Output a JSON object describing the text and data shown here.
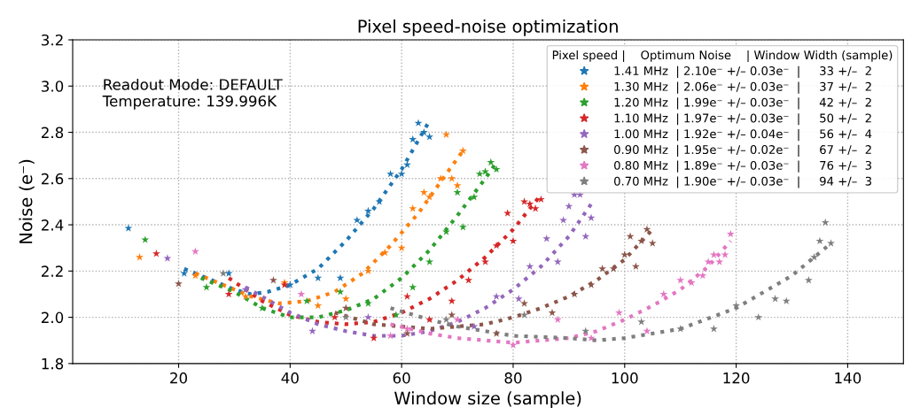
{
  "chart_data": {
    "type": "scatter",
    "title": "Pixel speed-noise optimization",
    "xlabel": "Window size (sample)",
    "ylabel": "Noise (e⁻)",
    "legend_title": "Pixel speed |    Optimum Noise    | Window Width (sample)",
    "annotations": [
      "Readout Mode: DEFAULT\nTemperature: 139.996K"
    ],
    "xlim": [
      1,
      150
    ],
    "xticks": [
      20,
      40,
      60,
      80,
      100,
      120,
      140
    ],
    "ylim": [
      1.8,
      3.2
    ],
    "yticks": [
      1.8,
      {
        "value": 2,
        "label": "2.0"
      },
      2.2,
      2.4,
      2.6,
      2.8,
      {
        "value": 3,
        "label": "3.0"
      },
      3.2
    ],
    "grid": true,
    "legend": "top right",
    "marker": "star",
    "series": [
      {
        "name": "1.41 MHz  | 2.10e⁻ +/– 0.03e⁻  |     33 +/–  2",
        "color": "#1f77b4",
        "x": [
          11,
          21,
          29,
          40,
          45,
          49,
          52,
          54,
          56,
          58,
          60,
          61,
          62,
          63,
          64,
          65
        ],
        "values": [
          2.385,
          2.19,
          2.19,
          2.14,
          2.17,
          2.17,
          2.42,
          2.46,
          2.5,
          2.62,
          2.62,
          2.66,
          2.77,
          2.84,
          2.8,
          2.78
        ]
      },
      {
        "name": "1.30 MHz  | 2.06e⁻ +/– 0.03e⁻  |     37 +/–  2",
        "color": "#ff7f0e",
        "x": [
          13,
          23,
          32,
          39,
          45,
          50,
          54,
          57,
          60,
          62,
          64,
          65,
          67,
          68,
          69,
          70,
          71
        ],
        "values": [
          2.26,
          2.18,
          2.09,
          2.15,
          2.05,
          2.08,
          2.2,
          2.28,
          2.3,
          2.47,
          2.54,
          2.52,
          2.6,
          2.79,
          2.6,
          2.57,
          2.72
        ]
      },
      {
        "name": "1.20 MHz  | 1.99e⁻ +/– 0.03e⁻  |     42 +/–  2",
        "color": "#2ca02c",
        "x": [
          14,
          25,
          35,
          43,
          49,
          54,
          59,
          62,
          65,
          68,
          70,
          71,
          73,
          74,
          75,
          76,
          77
        ],
        "values": [
          2.335,
          2.13,
          2.04,
          2.07,
          2.11,
          2.06,
          2.01,
          2.13,
          2.24,
          2.37,
          2.54,
          2.39,
          2.52,
          2.62,
          2.63,
          2.67,
          2.64
        ]
      },
      {
        "name": "1.10 MHz  | 1.97e⁻ +/– 0.03e⁻  |     50 +/–  2",
        "color": "#d62728",
        "x": [
          16,
          29,
          39,
          48,
          55,
          61,
          65,
          69,
          72,
          75,
          77,
          79,
          80,
          82,
          83,
          84,
          85
        ],
        "values": [
          2.275,
          2.1,
          2.14,
          2.0,
          1.91,
          2.09,
          1.99,
          2.07,
          2.16,
          2.24,
          2.31,
          2.45,
          2.33,
          2.5,
          2.49,
          2.47,
          2.51
        ]
      },
      {
        "name": "1.00 MHz  | 1.92e⁻ +/– 0.04e⁻  |     56 +/–  4",
        "color": "#9467bd",
        "x": [
          18,
          32,
          44,
          54,
          73,
          77,
          81,
          83,
          86,
          88,
          89,
          90,
          91,
          92,
          93,
          94
        ],
        "values": [
          2.255,
          2.12,
          1.94,
          2.0,
          1.96,
          2.09,
          2.08,
          2.22,
          2.34,
          2.24,
          2.42,
          2.48,
          2.53,
          2.53,
          2.35,
          2.43
        ]
      },
      {
        "name": "0.90 MHz  | 1.95e⁻ +/– 0.02e⁻  |     67 +/–  2",
        "color": "#8c564b",
        "x": [
          20,
          37,
          50,
          61,
          69,
          77,
          82,
          87,
          91,
          94,
          96,
          98,
          100,
          101,
          102,
          103,
          104,
          105
        ],
        "values": [
          2.145,
          2.16,
          2.04,
          1.93,
          2.01,
          1.93,
          2.06,
          2.02,
          2.1,
          2.14,
          2.21,
          2.21,
          2.27,
          2.35,
          2.22,
          2.33,
          2.38,
          2.32
        ]
      },
      {
        "name": "0.80 MHz  | 1.89e⁻ +/– 0.03e⁻  |     76 +/–  3",
        "color": "#e377c2",
        "x": [
          23,
          42,
          58,
          61,
          70,
          80,
          88,
          94,
          99,
          104,
          107,
          110,
          112,
          114,
          115,
          116,
          117,
          118,
          119
        ],
        "values": [
          2.285,
          2.1,
          1.92,
          1.95,
          1.99,
          1.88,
          1.99,
          1.91,
          2.02,
          1.94,
          2.1,
          2.16,
          2.15,
          2.18,
          2.24,
          2.27,
          2.24,
          2.27,
          2.36
        ]
      },
      {
        "name": "0.70 MHz  | 1.90e⁻ +/– 0.03e⁻  |     94 +/–  3",
        "color": "#7f7f7f",
        "x": [
          28,
          50,
          68,
          82,
          93,
          103,
          110,
          116,
          120,
          124,
          127,
          129,
          133,
          134,
          135,
          136,
          137
        ],
        "values": [
          2.19,
          2.0,
          1.99,
          2.01,
          1.94,
          1.98,
          1.95,
          1.95,
          2.05,
          2.0,
          2.08,
          2.07,
          2.16,
          2.26,
          2.33,
          2.41,
          2.32
        ]
      },
      {
        "type": "line",
        "marker": "none",
        "line_style": "dotted",
        "color": "#1f77b4",
        "x": [
          21,
          25,
          30,
          33,
          36,
          40,
          45,
          50,
          55,
          60,
          65
        ],
        "values": [
          2.21,
          2.17,
          2.12,
          2.1,
          2.11,
          2.14,
          2.21,
          2.33,
          2.47,
          2.64,
          2.85
        ]
      },
      {
        "type": "line",
        "marker": "none",
        "line_style": "dotted",
        "color": "#ff7f0e",
        "x": [
          23,
          28,
          33,
          38,
          43,
          48,
          53,
          58,
          63,
          68,
          71
        ],
        "values": [
          2.19,
          2.14,
          2.09,
          2.06,
          2.07,
          2.11,
          2.19,
          2.31,
          2.45,
          2.62,
          2.72
        ]
      },
      {
        "type": "line",
        "marker": "none",
        "line_style": "dotted",
        "color": "#2ca02c",
        "x": [
          24,
          30,
          35,
          40,
          45,
          50,
          55,
          60,
          65,
          70,
          75,
          77
        ],
        "values": [
          2.17,
          2.11,
          2.04,
          2.0,
          2.0,
          2.03,
          2.08,
          2.17,
          2.29,
          2.44,
          2.6,
          2.67
        ]
      },
      {
        "type": "line",
        "marker": "none",
        "line_style": "dotted",
        "color": "#d62728",
        "x": [
          29,
          35,
          40,
          45,
          50,
          55,
          60,
          65,
          70,
          75,
          80,
          85
        ],
        "values": [
          2.17,
          2.07,
          2.01,
          1.98,
          1.97,
          1.98,
          2.02,
          2.08,
          2.16,
          2.26,
          2.38,
          2.53
        ]
      },
      {
        "type": "line",
        "marker": "none",
        "line_style": "dotted",
        "color": "#9467bd",
        "x": [
          32,
          40,
          45,
          50,
          55,
          60,
          65,
          70,
          75,
          80,
          85,
          90,
          94
        ],
        "values": [
          2.13,
          2.02,
          1.97,
          1.94,
          1.92,
          1.92,
          1.94,
          1.98,
          2.04,
          2.12,
          2.22,
          2.35,
          2.49
        ]
      },
      {
        "type": "line",
        "marker": "none",
        "line_style": "dotted",
        "color": "#8c564b",
        "x": [
          48,
          55,
          60,
          65,
          70,
          75,
          80,
          85,
          90,
          95,
          100,
          105
        ],
        "values": [
          2.02,
          1.97,
          1.96,
          1.95,
          1.96,
          1.97,
          2.0,
          2.04,
          2.09,
          2.16,
          2.25,
          2.38
        ]
      },
      {
        "type": "line",
        "marker": "none",
        "line_style": "dotted",
        "color": "#e377c2",
        "x": [
          58,
          65,
          70,
          75,
          80,
          85,
          90,
          95,
          100,
          105,
          110,
          115,
          119
        ],
        "values": [
          1.97,
          1.93,
          1.91,
          1.9,
          1.89,
          1.9,
          1.91,
          1.94,
          1.99,
          2.05,
          2.12,
          2.22,
          2.33
        ]
      },
      {
        "type": "line",
        "marker": "none",
        "line_style": "dotted",
        "color": "#7f7f7f",
        "x": [
          58,
          65,
          70,
          80,
          90,
          95,
          100,
          110,
          120,
          125,
          130,
          137
        ],
        "values": [
          2.04,
          1.99,
          1.96,
          1.92,
          1.91,
          1.9,
          1.91,
          1.95,
          2.04,
          2.11,
          2.18,
          2.32
        ]
      }
    ]
  }
}
